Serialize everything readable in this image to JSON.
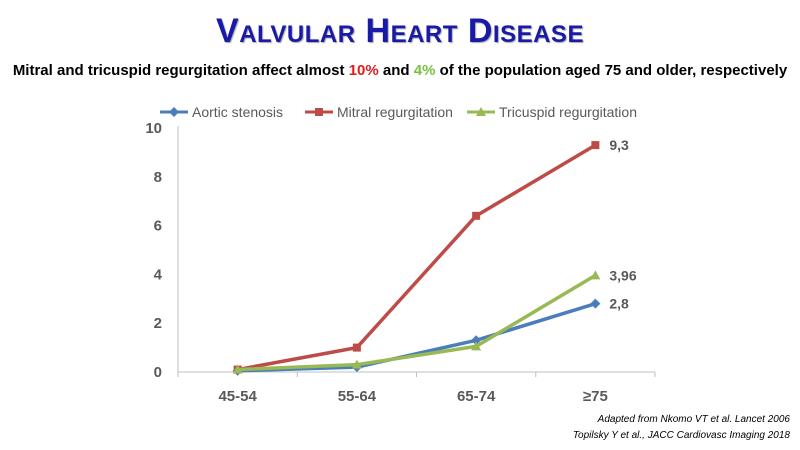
{
  "slide": {
    "title": "Valvular Heart Disease",
    "subtitle_parts": [
      "Mitral and tricuspid regurgitation affect almost ",
      "10%",
      " and ",
      "4%",
      " of the population aged 75 and older, respectively"
    ],
    "sources": [
      "Adapted from Nkomo VT et al. Lancet 2006",
      "Topilsky Y et al., JACC Cardiovasc Imaging 2018"
    ]
  },
  "chart_data": {
    "type": "line",
    "categories": [
      "45-54",
      "55-64",
      "65-74",
      "≥75"
    ],
    "ylim": [
      0,
      10
    ],
    "yticks": [
      0,
      2,
      4,
      6,
      8,
      10
    ],
    "grid": false,
    "legend_position": "top",
    "series": [
      {
        "name": "Aortic stenosis",
        "values": [
          0.05,
          0.2,
          1.3,
          2.8
        ],
        "color": "#4a7ebb",
        "marker": "diamond",
        "end_label": "2,8"
      },
      {
        "name": "Mitral regurgitation",
        "values": [
          0.1,
          1.0,
          6.4,
          9.3
        ],
        "color": "#be4b48",
        "marker": "square",
        "end_label": "9,3"
      },
      {
        "name": "Tricuspid regurgitation",
        "values": [
          0.1,
          0.3,
          1.05,
          3.96
        ],
        "color": "#98b954",
        "marker": "triangle",
        "end_label": "3,96"
      }
    ]
  }
}
